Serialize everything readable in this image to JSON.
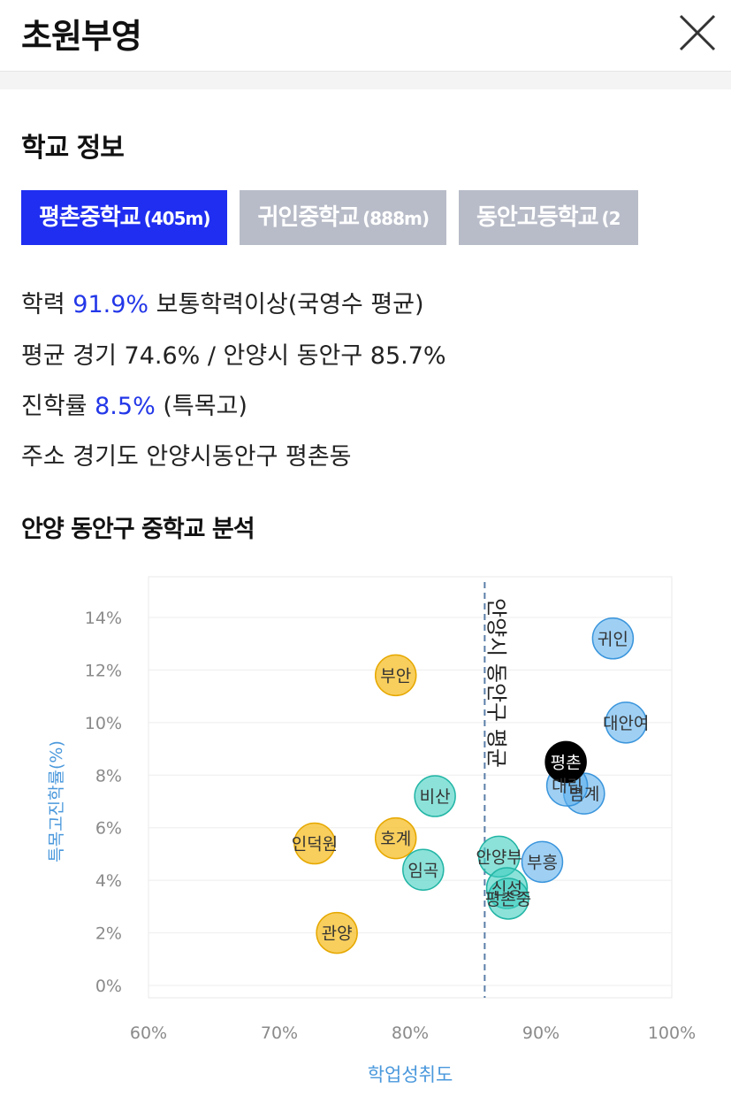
{
  "header": {
    "title": "초원부영"
  },
  "school_info": {
    "heading": "학교 정보",
    "tabs": [
      {
        "name": "평촌중학교",
        "dist": "(405m)",
        "active": true
      },
      {
        "name": "귀인중학교",
        "dist": "(888m)",
        "active": false
      },
      {
        "name": "동안고등학교",
        "dist": "(2",
        "active": false
      }
    ],
    "academic_label": "학력",
    "academic_value": "91.9%",
    "academic_desc": "보통학력이상(국영수 평균)",
    "average_text": "평균 경기 74.6% / 안양시 동안구 85.7%",
    "advance_label": "진학률",
    "advance_value": "8.5%",
    "advance_desc": "(특목고)",
    "address": "주소 경기도 안양시동안구 평촌동"
  },
  "analysis": {
    "heading": "안양 동안구 중학교 분석"
  },
  "chart_data": {
    "type": "scatter",
    "xlabel": "학업성취도",
    "ylabel": "특목고진학률(%)",
    "xlim": [
      60,
      100
    ],
    "ylim": [
      0,
      14
    ],
    "x_ticks": [
      "60%",
      "70%",
      "80%",
      "90%",
      "100%"
    ],
    "y_ticks": [
      "0%",
      "2%",
      "4%",
      "6%",
      "8%",
      "10%",
      "12%",
      "14%"
    ],
    "reference_line": {
      "x": 85.7,
      "label": "안양시 동안구 평균"
    },
    "colors": {
      "yellow": "#f6c02f",
      "teal": "#3fcfbf",
      "blue": "#5fb0ec",
      "black": "#000000"
    },
    "points": [
      {
        "name": "귀인",
        "x": 95.5,
        "y": 13.2,
        "color": "blue"
      },
      {
        "name": "대안여",
        "x": 96.5,
        "y": 10.0,
        "color": "blue"
      },
      {
        "name": "범계",
        "x": 93.3,
        "y": 7.3,
        "color": "blue"
      },
      {
        "name": "대림",
        "x": 92.0,
        "y": 7.6,
        "color": "blue"
      },
      {
        "name": "평촌",
        "x": 91.9,
        "y": 8.5,
        "color": "black"
      },
      {
        "name": "부흥",
        "x": 90.1,
        "y": 4.7,
        "color": "blue"
      },
      {
        "name": "부안",
        "x": 78.9,
        "y": 11.8,
        "color": "yellow"
      },
      {
        "name": "호계",
        "x": 78.9,
        "y": 5.6,
        "color": "yellow"
      },
      {
        "name": "인덕원",
        "x": 72.7,
        "y": 5.4,
        "color": "yellow"
      },
      {
        "name": "관양",
        "x": 74.4,
        "y": 2.0,
        "color": "yellow"
      },
      {
        "name": "비산",
        "x": 81.9,
        "y": 7.2,
        "color": "teal"
      },
      {
        "name": "임곡",
        "x": 81.0,
        "y": 4.4,
        "color": "teal"
      },
      {
        "name": "안양부",
        "x": 86.8,
        "y": 4.9,
        "color": "teal"
      },
      {
        "name": "신성",
        "x": 87.4,
        "y": 3.7,
        "color": "teal"
      },
      {
        "name": "평촌중",
        "x": 87.5,
        "y": 3.3,
        "color": "teal"
      }
    ]
  }
}
